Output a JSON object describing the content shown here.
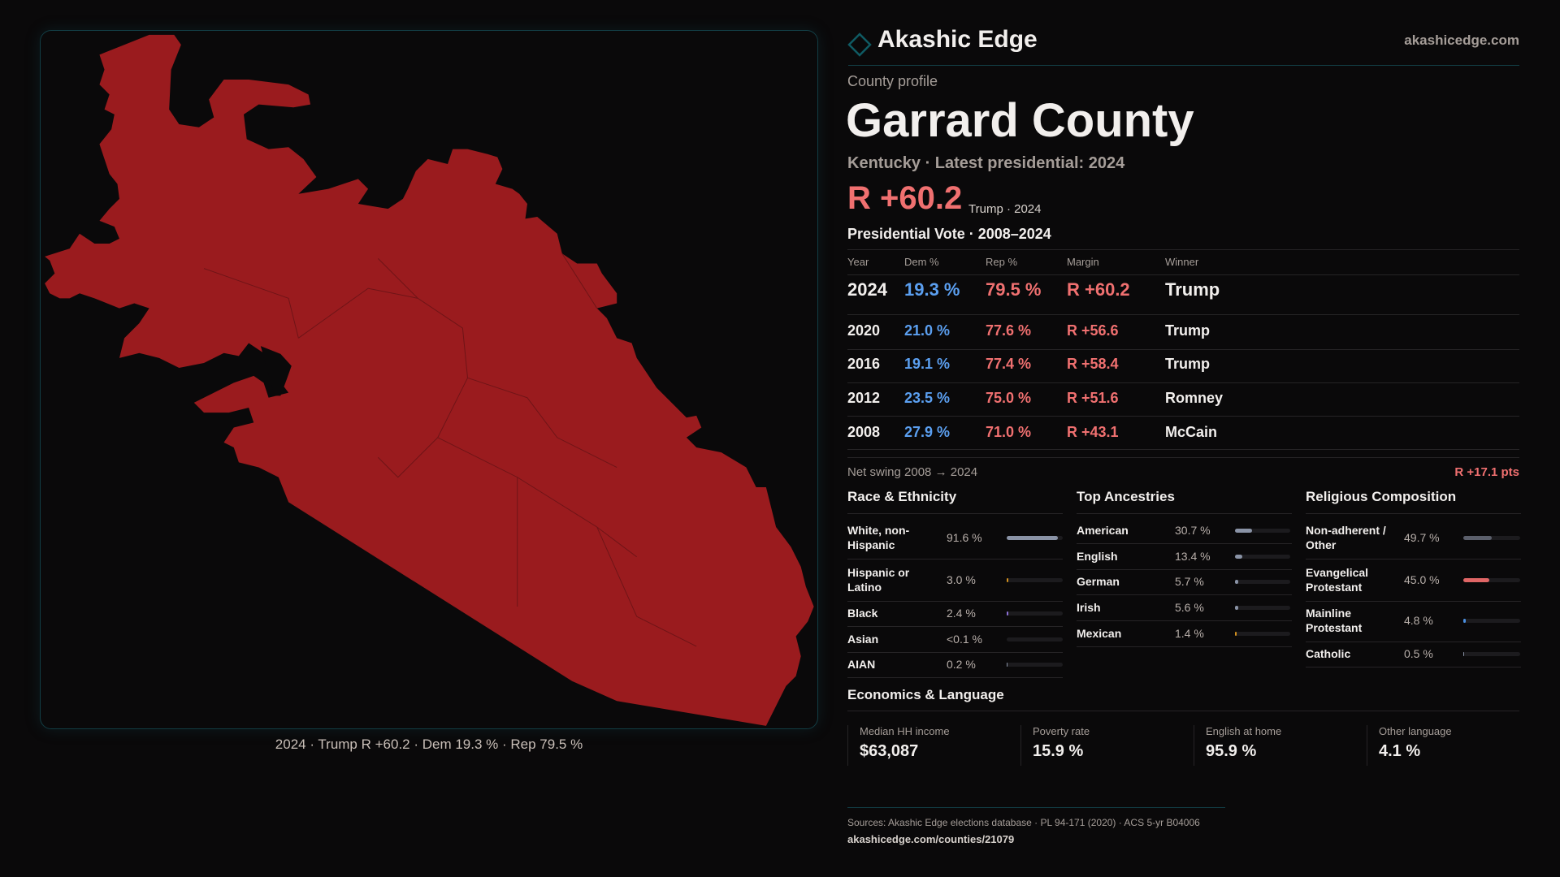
{
  "map": {
    "caption": "2024 · Trump R +60.2 · Dem 19.3 % · Rep 79.5 %",
    "fill_color": "#9a1b1e"
  },
  "header": {
    "brand": "Akashic Edge",
    "site": "akashicedge.com"
  },
  "profile": {
    "eyebrow": "County profile",
    "title": "Garrard County",
    "subtitle": "Kentucky · Latest presidential: 2024",
    "margin": "R +60.2",
    "margin_note": "Trump · 2024"
  },
  "votes": {
    "title": "Presidential Vote · 2008–2024",
    "headers": [
      "Year",
      "Dem %",
      "Rep %",
      "Margin",
      "Winner"
    ],
    "rows": [
      {
        "year": "2024",
        "dem": "19.3 %",
        "rep": "79.5 %",
        "margin": "R +60.2",
        "winner": "Trump"
      },
      {
        "year": "2020",
        "dem": "21.0 %",
        "rep": "77.6 %",
        "margin": "R +56.6",
        "winner": "Trump"
      },
      {
        "year": "2016",
        "dem": "19.1 %",
        "rep": "77.4 %",
        "margin": "R +58.4",
        "winner": "Trump"
      },
      {
        "year": "2012",
        "dem": "23.5 %",
        "rep": "75.0 %",
        "margin": "R +51.6",
        "winner": "Romney"
      },
      {
        "year": "2008",
        "dem": "27.9 %",
        "rep": "71.0 %",
        "margin": "R +43.1",
        "winner": "McCain"
      }
    ],
    "swing_label": "Net swing 2008 → 2024",
    "swing_value": "R +17.1 pts"
  },
  "race": {
    "title": "Race & Ethnicity",
    "items": [
      {
        "label": "White, non-Hispanic",
        "value": "91.6 %",
        "pct": 91.6,
        "color": "#8a93a6"
      },
      {
        "label": "Hispanic or Latino",
        "value": "3.0 %",
        "pct": 3.0,
        "color": "#d4911e"
      },
      {
        "label": "Black",
        "value": "2.4 %",
        "pct": 2.4,
        "color": "#8c6fd6"
      },
      {
        "label": "Asian",
        "value": "<0.1 %",
        "pct": 0.05,
        "color": "#4a8fe0"
      },
      {
        "label": "AIAN",
        "value": "0.2 %",
        "pct": 0.2,
        "color": "#8a93a6"
      }
    ]
  },
  "ancestry": {
    "title": "Top Ancestries",
    "items": [
      {
        "label": "American",
        "value": "30.7 %",
        "pct": 30.7,
        "color": "#8a93a6"
      },
      {
        "label": "English",
        "value": "13.4 %",
        "pct": 13.4,
        "color": "#8a93a6"
      },
      {
        "label": "German",
        "value": "5.7 %",
        "pct": 5.7,
        "color": "#8a93a6"
      },
      {
        "label": "Irish",
        "value": "5.6 %",
        "pct": 5.6,
        "color": "#8a93a6"
      },
      {
        "label": "Mexican",
        "value": "1.4 %",
        "pct": 1.4,
        "color": "#d4911e"
      }
    ]
  },
  "religion": {
    "title": "Religious Composition",
    "items": [
      {
        "label": "Non-adherent / Other",
        "value": "49.7 %",
        "pct": 49.7,
        "color": "#5b5f6b"
      },
      {
        "label": "Evangelical Protestant",
        "value": "45.0 %",
        "pct": 45.0,
        "color": "#e06666"
      },
      {
        "label": "Mainline Protestant",
        "value": "4.8 %",
        "pct": 4.8,
        "color": "#4a8fe0"
      },
      {
        "label": "Catholic",
        "value": "0.5 %",
        "pct": 0.5,
        "color": "#8a93a6"
      }
    ]
  },
  "economics": {
    "title": "Economics & Language",
    "items": [
      {
        "label": "Median HH income",
        "value": "$63,087"
      },
      {
        "label": "Poverty rate",
        "value": "15.9 %"
      },
      {
        "label": "English at home",
        "value": "95.9 %"
      },
      {
        "label": "Other language",
        "value": "4.1 %"
      }
    ]
  },
  "footer": {
    "sources": "Sources: Akashic Edge elections database · PL 94-171 (2020) · ACS 5-yr B04006",
    "url": "akashicedge.com/counties/21079"
  }
}
